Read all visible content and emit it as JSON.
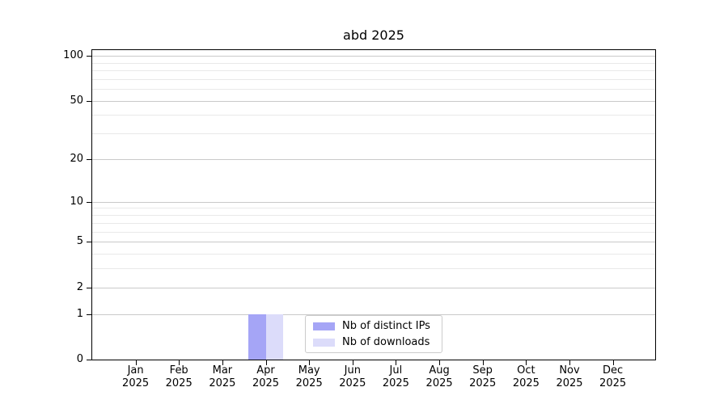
{
  "title": "abd 2025",
  "chart_data": {
    "type": "bar",
    "title": "abd 2025",
    "categories": [
      "Jan 2025",
      "Feb 2025",
      "Mar 2025",
      "Apr 2025",
      "May 2025",
      "Jun 2025",
      "Jul 2025",
      "Aug 2025",
      "Sep 2025",
      "Oct 2025",
      "Nov 2025",
      "Dec 2025"
    ],
    "x_axis": {
      "months": [
        "Jan",
        "Feb",
        "Mar",
        "Apr",
        "May",
        "Jun",
        "Jul",
        "Aug",
        "Sep",
        "Oct",
        "Nov",
        "Dec"
      ],
      "year": "2025"
    },
    "series": [
      {
        "name": "Nb of distinct IPs",
        "color": "#a5a5f6",
        "values": [
          0,
          0,
          0,
          1,
          0,
          0,
          0,
          0,
          0,
          0,
          0,
          0
        ]
      },
      {
        "name": "Nb of downloads",
        "color": "#dcdcfa",
        "values": [
          0,
          0,
          0,
          1,
          0,
          0,
          0,
          0,
          0,
          0,
          0,
          0
        ]
      }
    ],
    "y_axis": {
      "scale": "log10(1+y)",
      "major_ticks": [
        100,
        50,
        20,
        10,
        5,
        2,
        1,
        0
      ],
      "minor_gridlines": [
        90,
        80,
        70,
        60,
        40,
        30,
        9,
        8,
        7,
        6,
        4,
        3
      ],
      "ylim": [
        0,
        109
      ]
    },
    "grid": true,
    "legend": {
      "position": "lower center",
      "items": [
        "Nb of distinct IPs",
        "Nb of downloads"
      ]
    },
    "colors": {
      "bar_distinct_ips": "#a5a5f6",
      "bar_downloads": "#dcdcfa",
      "grid_major": "#c9c9c9",
      "grid_minor": "#e9e9e9",
      "axis": "#000000"
    }
  }
}
